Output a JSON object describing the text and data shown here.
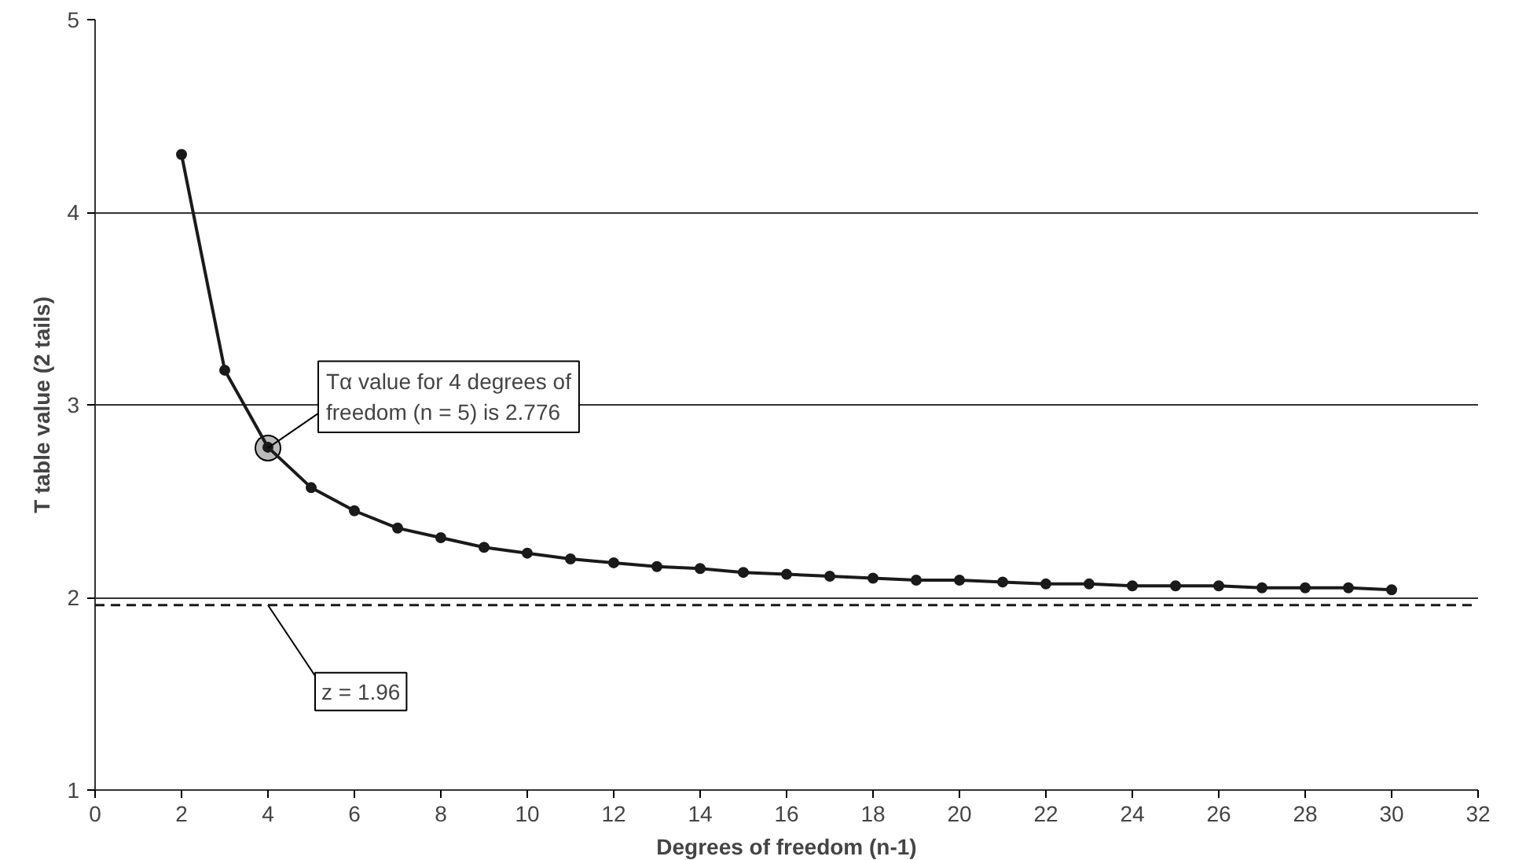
{
  "chart_data": {
    "type": "line",
    "xlabel": "Degrees of freedom (n-1)",
    "ylabel": "T table value (2 tails)",
    "x": [
      2,
      3,
      4,
      5,
      6,
      7,
      8,
      9,
      10,
      11,
      12,
      13,
      14,
      15,
      16,
      17,
      18,
      19,
      20,
      21,
      22,
      23,
      24,
      25,
      26,
      27,
      28,
      29,
      30
    ],
    "series": [
      {
        "color": "#1a1a1a",
        "values": [
          4.3,
          3.18,
          2.78,
          2.57,
          2.45,
          2.36,
          2.31,
          2.26,
          2.23,
          2.2,
          2.18,
          2.16,
          2.15,
          2.13,
          2.12,
          2.11,
          2.1,
          2.09,
          2.09,
          2.08,
          2.07,
          2.07,
          2.06,
          2.06,
          2.06,
          2.05,
          2.05,
          2.05,
          2.04
        ]
      }
    ],
    "xlim": [
      0,
      32
    ],
    "xticks": [
      0,
      2,
      4,
      6,
      8,
      10,
      12,
      14,
      16,
      18,
      20,
      22,
      24,
      26,
      28,
      30,
      32
    ],
    "ylim": [
      1,
      5
    ],
    "yticks": [
      1,
      2,
      3,
      4,
      5
    ],
    "grid": "y",
    "marker": "circle",
    "line_style": "solid",
    "ref_lines": [
      {
        "axis": "y",
        "value": 1.96,
        "label": "z = 1.96",
        "color": "#1a1a1a",
        "line_style": "dashed"
      }
    ],
    "annotations": [
      {
        "text": "Tα value for 4 degrees of\nfreedom (n = 5) is 2.776",
        "x": 4,
        "y": 2.776
      }
    ]
  }
}
